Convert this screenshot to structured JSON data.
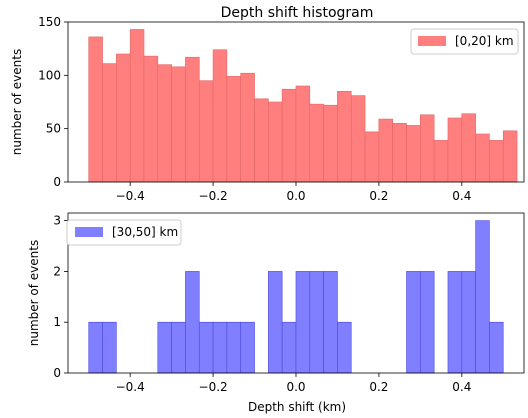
{
  "chart_data": [
    {
      "type": "bar",
      "title": "Depth shift histogram",
      "xlabel": "",
      "ylabel": "number of events",
      "bin_edges_start": -0.5,
      "bin_width": 0.03333,
      "xlim": [
        -0.55,
        0.55
      ],
      "ylim": [
        0,
        150
      ],
      "yticks": [
        0,
        50,
        100,
        150
      ],
      "xticks": [
        -0.4,
        -0.2,
        0.0,
        0.2,
        0.4
      ],
      "xtick_labels": [
        "−0.4",
        "−0.2",
        "0.0",
        "0.2",
        "0.4"
      ],
      "series": [
        {
          "name": "[0,20] km",
          "color": "#ff7f7f",
          "values": [
            136,
            111,
            120,
            143,
            118,
            110,
            108,
            117,
            95,
            124,
            99,
            102,
            78,
            75,
            87,
            90,
            73,
            72,
            85,
            81,
            47,
            59,
            55,
            53,
            63,
            39,
            60,
            64,
            45,
            39,
            48
          ]
        }
      ],
      "legend_position": "top-right",
      "grid": false
    },
    {
      "type": "bar",
      "title": "",
      "xlabel": "Depth shift (km)",
      "ylabel": "number of events",
      "bin_edges_start": -0.5,
      "bin_width": 0.03333,
      "xlim": [
        -0.55,
        0.55
      ],
      "ylim": [
        0,
        3.15
      ],
      "yticks": [
        0,
        1,
        2,
        3
      ],
      "xticks": [
        -0.4,
        -0.2,
        0.0,
        0.2,
        0.4
      ],
      "xtick_labels": [
        "−0.4",
        "−0.2",
        "0.0",
        "0.2",
        "0.4"
      ],
      "series": [
        {
          "name": "[30,50] km",
          "color": "#7f7fff",
          "values": [
            1,
            1,
            0,
            0,
            0,
            1,
            1,
            2,
            1,
            1,
            1,
            1,
            0,
            2,
            1,
            2,
            2,
            2,
            1,
            0,
            0,
            0,
            0,
            2,
            2,
            0,
            2,
            2,
            3,
            1
          ]
        }
      ],
      "legend_position": "top-left",
      "grid": false
    }
  ]
}
